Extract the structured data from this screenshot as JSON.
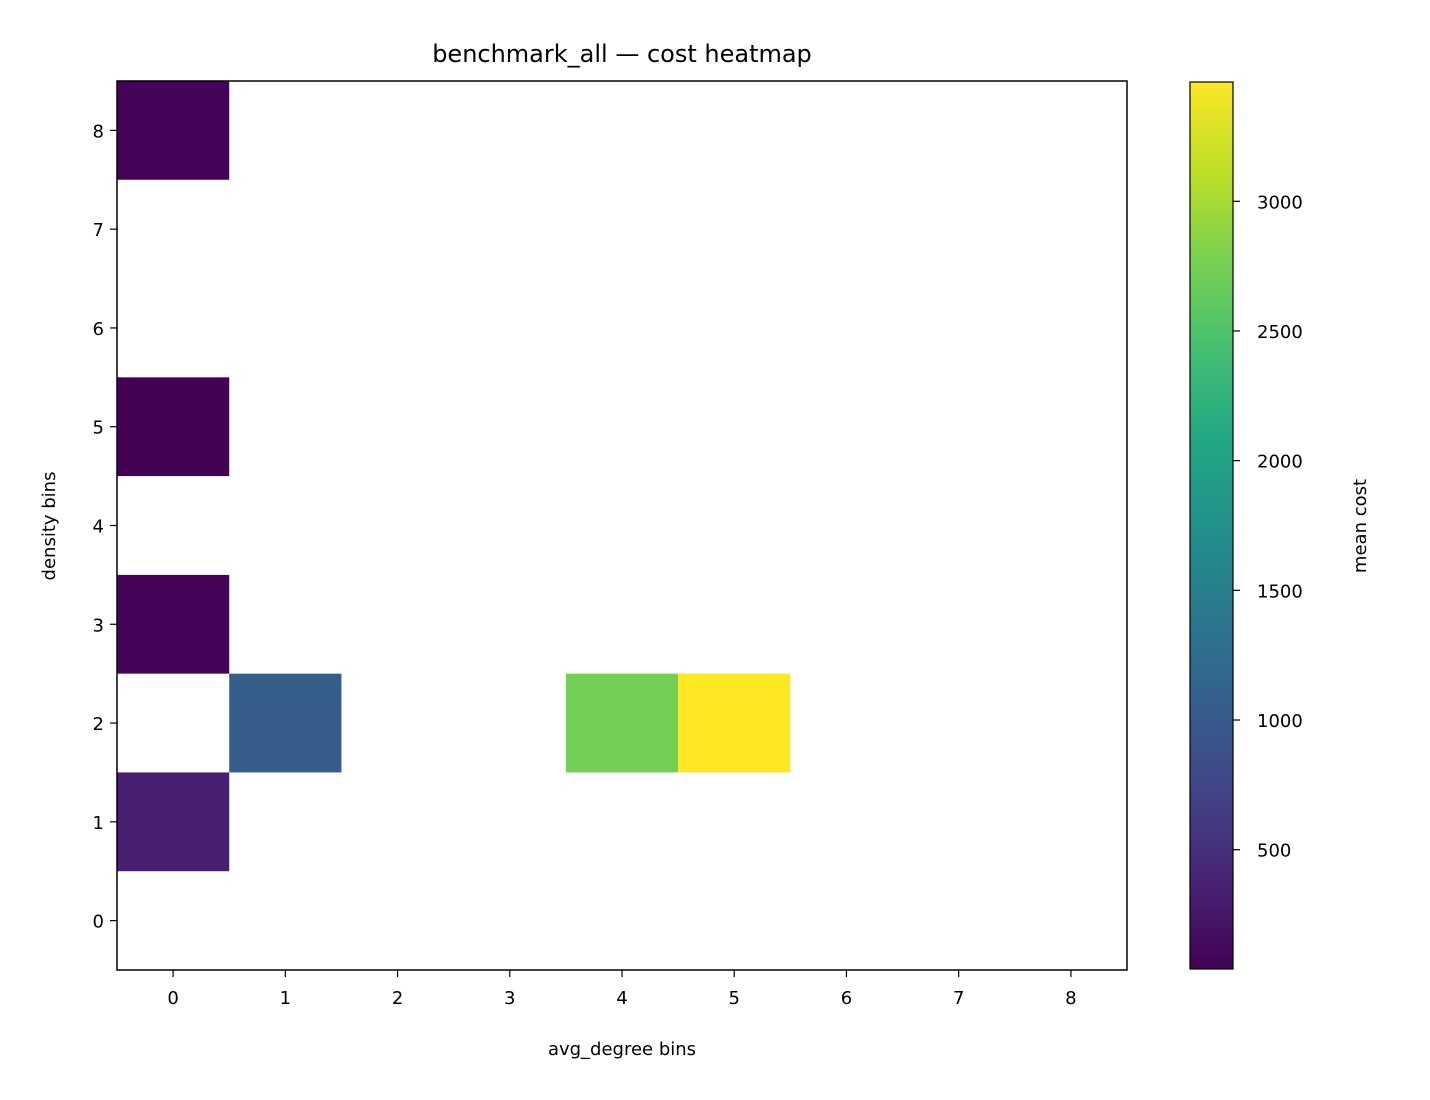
{
  "chart_data": {
    "type": "heatmap",
    "title": "benchmark_all — cost heatmap",
    "xlabel": "avg_degree bins",
    "ylabel": "density bins",
    "colorbar_label": "mean cost",
    "colormap": "viridis",
    "x_ticks": [
      "0",
      "1",
      "2",
      "3",
      "4",
      "5",
      "6",
      "7",
      "8"
    ],
    "y_ticks": [
      "0",
      "1",
      "2",
      "3",
      "4",
      "5",
      "6",
      "7",
      "8"
    ],
    "xlim": [
      -0.5,
      8.5
    ],
    "ylim": [
      -0.5,
      8.5
    ],
    "color_range": [
      40,
      3460
    ],
    "colorbar_ticks": [
      "500",
      "1000",
      "1500",
      "2000",
      "2500",
      "3000"
    ],
    "cells": [
      {
        "x": 0,
        "y": 8,
        "value": 60
      },
      {
        "x": 0,
        "y": 5,
        "value": 50
      },
      {
        "x": 0,
        "y": 3,
        "value": 70
      },
      {
        "x": 0,
        "y": 1,
        "value": 330
      },
      {
        "x": 1,
        "y": 2,
        "value": 1050
      },
      {
        "x": 4,
        "y": 2,
        "value": 2730
      },
      {
        "x": 5,
        "y": 2,
        "value": 3460
      }
    ],
    "grid": false
  }
}
